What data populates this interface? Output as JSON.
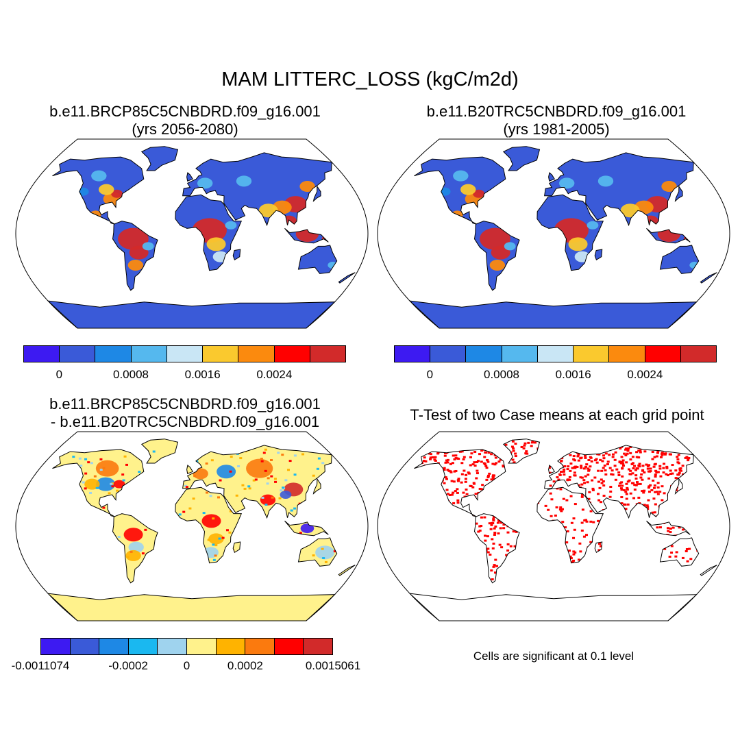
{
  "figure_title": "MAM LITTERC_LOSS (kgC/m2d)",
  "panels": [
    {
      "title_line1": "b.e11.BRCP85C5CNBDRD.f09_g16.001",
      "title_line2": "(yrs 2056-2080)"
    },
    {
      "title_line1": "b.e11.B20TRC5CNBDRD.f09_g16.001",
      "title_line2": "(yrs 1981-2005)"
    },
    {
      "title_line1": "b.e11.BRCP85C5CNBDRD.f09_g16.001",
      "title_line2": "- b.e11.B20TRC5CNBDRD.f09_g16.001"
    },
    {
      "title_line1": "T-Test of two Case means at each grid point"
    }
  ],
  "colorbar_abs": {
    "colors": [
      "#3d1af2",
      "#3a5ad8",
      "#1e88e5",
      "#55b8ee",
      "#c9e6f5",
      "#fac92e",
      "#fb8a0e",
      "#ff0000",
      "#d22a2a"
    ],
    "labels": [
      "0",
      "0.0008",
      "0.0016",
      "0.0024"
    ]
  },
  "colorbar_diff": {
    "colors": [
      "#3d1af2",
      "#3a5ad8",
      "#1e88e5",
      "#1ab8f0",
      "#9fd3ee",
      "#fff28c",
      "#ffb300",
      "#fb7a0e",
      "#ff0000",
      "#d22a2a"
    ],
    "labels": [
      "-0.0011074",
      "-0.0002",
      "0",
      "0.0002",
      "0.0015061"
    ]
  },
  "significance_color": "#ff0000",
  "note": "Cells are significant at 0.1 level"
}
